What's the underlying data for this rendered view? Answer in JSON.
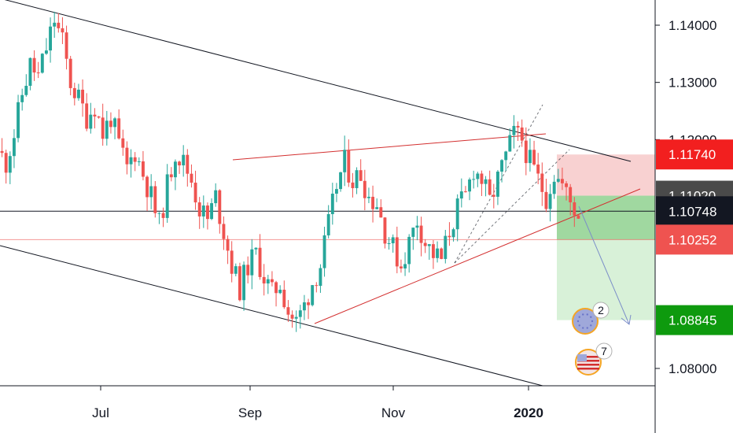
{
  "chart_data": {
    "type": "candlestick",
    "title": "",
    "xlabel": "",
    "ylabel": "",
    "ylim": [
      1.0765,
      1.145
    ],
    "y_ticks": [
      "1.14000",
      "1.13000",
      "1.12000",
      "1.08000"
    ],
    "x_ticks": [
      {
        "label": "Jul",
        "bold": false
      },
      {
        "label": "Sep",
        "bold": false
      },
      {
        "label": "Nov",
        "bold": false
      },
      {
        "label": "2020",
        "bold": true
      }
    ],
    "price_labels": [
      {
        "text": "1.11740",
        "value": 1.1174,
        "color": "#f21f1f"
      },
      {
        "text": "1.11020",
        "value": 1.1102,
        "color": "#4a4a4a"
      },
      {
        "text": "1.10748",
        "value": 1.10748,
        "color": "#131722"
      },
      {
        "text": "1.10252",
        "value": 1.10252,
        "color": "#ef5350"
      },
      {
        "text": "1.08845",
        "value": 1.08845,
        "color": "#0e9a0e"
      }
    ],
    "position": {
      "side": "short",
      "entry": 1.1102,
      "stop": 1.1174,
      "target": 1.08845
    },
    "current_price": 1.10748,
    "reference_price": 1.10252,
    "series_colors": {
      "up": "#26a69a",
      "down": "#ef5350"
    },
    "closes_sampled": [
      1.118,
      1.116,
      1.121,
      1.128,
      1.133,
      1.131,
      1.136,
      1.141,
      1.137,
      1.13,
      1.127,
      1.124,
      1.126,
      1.121,
      1.124,
      1.119,
      1.115,
      1.118,
      1.114,
      1.11,
      1.105,
      1.112,
      1.118,
      1.116,
      1.113,
      1.108,
      1.106,
      1.11,
      1.104,
      1.098,
      1.094,
      1.098,
      1.1,
      1.096,
      1.093,
      1.095,
      1.09,
      1.088,
      1.091,
      1.095,
      1.098,
      1.105,
      1.112,
      1.116,
      1.113,
      1.114,
      1.11,
      1.109,
      1.104,
      1.101,
      1.098,
      1.102,
      1.106,
      1.102,
      1.1,
      1.099,
      1.104,
      1.108,
      1.11,
      1.115,
      1.113,
      1.109,
      1.113,
      1.117,
      1.121,
      1.12,
      1.116,
      1.113,
      1.11,
      1.114,
      1.112,
      1.109,
      1.107
    ],
    "badges": [
      {
        "icon": "eu-flag",
        "count": "2"
      },
      {
        "icon": "us-flag",
        "count": "7"
      }
    ]
  }
}
